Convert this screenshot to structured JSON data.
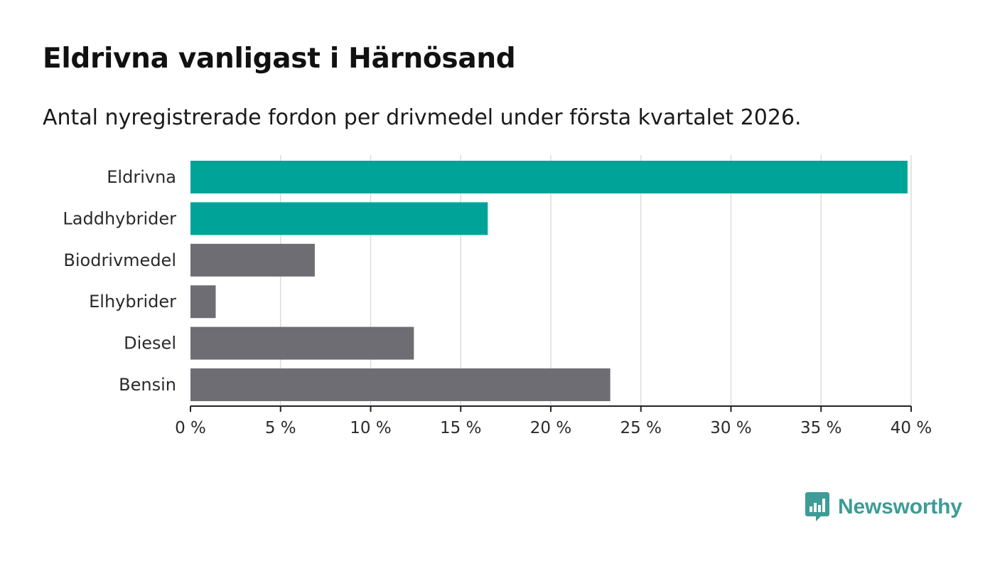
{
  "header": {
    "title": "Eldrivna vanligast i Härnösand",
    "subtitle": "Antal nyregistrerade fordon per drivmedel under första kvartalet 2026."
  },
  "chart_data": {
    "type": "bar",
    "orientation": "horizontal",
    "title": "Eldrivna vanligast i Härnösand",
    "subtitle": "Antal nyregistrerade fordon per drivmedel under första kvartalet 2026.",
    "categories": [
      "Eldrivna",
      "Laddhybrider",
      "Biodrivmedel",
      "Elhybrider",
      "Diesel",
      "Bensin"
    ],
    "values": [
      39.8,
      16.5,
      6.9,
      1.4,
      12.4,
      23.3
    ],
    "bar_colors": [
      "#00a398",
      "#00a398",
      "#6e6d74",
      "#6e6d74",
      "#6e6d74",
      "#6e6d74"
    ],
    "xlim": [
      0,
      40
    ],
    "xticks": [
      0,
      5,
      10,
      15,
      20,
      25,
      30,
      35,
      40
    ],
    "xtick_labels": [
      "0 %",
      "5 %",
      "10 %",
      "15 %",
      "20 %",
      "25 %",
      "30 %",
      "35 %",
      "40 %"
    ],
    "xlabel": "",
    "ylabel": "",
    "grid": "vertical"
  },
  "brand": {
    "name": "Newsworthy",
    "logo_icon": "bar-chart-speech-bubble-icon",
    "color": "#3d9c96"
  }
}
